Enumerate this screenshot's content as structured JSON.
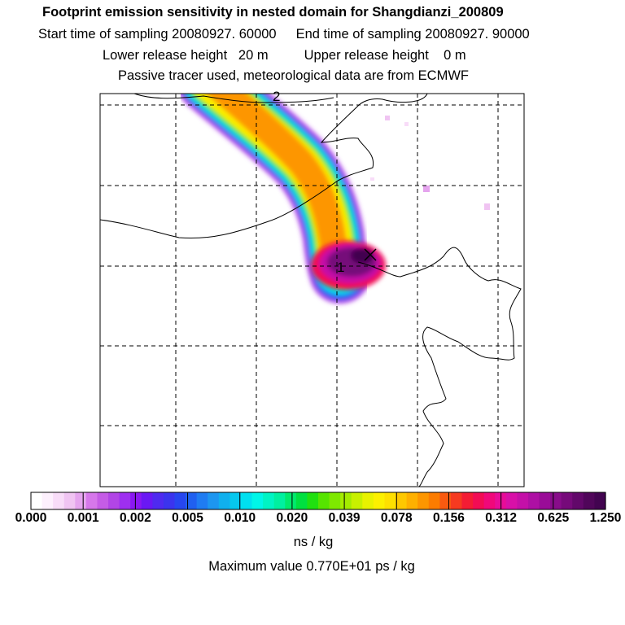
{
  "chart_data": {
    "type": "heatmap",
    "title": "Footprint emission sensitivity in nested domain for Shangdianzi_200809",
    "subtitle_lines": [
      {
        "left": "Start time of sampling 20080927. 60000",
        "right": "End time of sampling 20080927. 90000"
      },
      {
        "left": "Lower release height   20 m",
        "right": "Upper release height    0 m"
      }
    ],
    "note": "Passive tracer used, meteorological data are from ECMWF",
    "map_labels": [
      "1",
      "2"
    ],
    "colorbar": {
      "tick_labels": [
        "0.000",
        "0.001",
        "0.002",
        "0.005",
        "0.010",
        "0.020",
        "0.039",
        "0.078",
        "0.156",
        "0.312",
        "0.625",
        "1.250"
      ],
      "colors": [
        "#ffffff",
        "#fdf0fd",
        "#f8dcf8",
        "#f0c4f2",
        "#e5a4ee",
        "#d677ea",
        "#c55ce6",
        "#b245e6",
        "#9e2ff0",
        "#8a17f2",
        "#6a18f4",
        "#4f2af0",
        "#3b34ee",
        "#2746f0",
        "#2060f0",
        "#1f7cf2",
        "#1d96f0",
        "#10b0ee",
        "#06c8ee",
        "#00e0f0",
        "#00f6e8",
        "#00f4c4",
        "#00f0a0",
        "#00ea6c",
        "#00e040",
        "#20e010",
        "#56e400",
        "#7ee800",
        "#a4ec00",
        "#c8f000",
        "#e8f200",
        "#fcf000",
        "#fee000",
        "#fec800",
        "#feb000",
        "#fd9600",
        "#fc7c00",
        "#fa5a10",
        "#f63a20",
        "#f41c34",
        "#f20c54",
        "#f0087a",
        "#e80c98",
        "#d810a8",
        "#c410a8",
        "#ae10a4",
        "#9a0c98",
        "#880c8a",
        "#760a7a",
        "#62086a",
        "#50065a",
        "#420450"
      ],
      "unit": "ns / kg"
    },
    "max_value_text": "Maximum value  0.770E+01 ps / kg"
  }
}
